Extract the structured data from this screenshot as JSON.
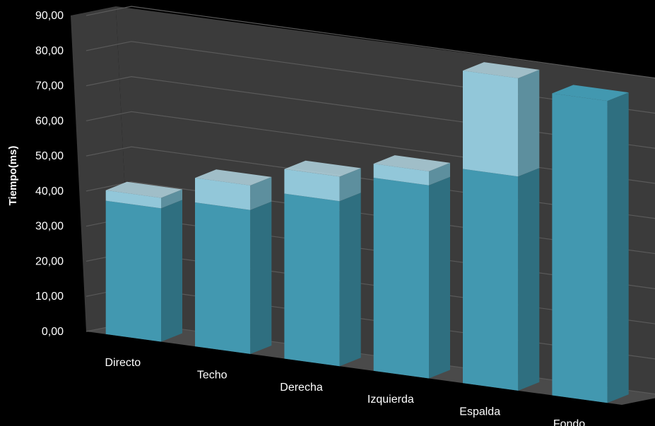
{
  "chart_data": {
    "type": "bar",
    "stacked": true,
    "three_d": true,
    "ylabel": "Tiempo(ms)",
    "xlabel": "",
    "ylim": [
      0,
      90
    ],
    "ytick_step": 10,
    "ytick_labels": [
      "0,00",
      "10,00",
      "20,00",
      "30,00",
      "40,00",
      "50,00",
      "60,00",
      "70,00",
      "80,00",
      "90,00"
    ],
    "grid": true,
    "categories": [
      "Directo",
      "Techo",
      "Derecha",
      "Izquierda",
      "Espalda",
      "Fondo"
    ],
    "series": [
      {
        "values": [
          38,
          41,
          47,
          55,
          61,
          86
        ]
      },
      {
        "values": [
          3,
          7,
          7,
          4,
          28,
          0
        ]
      }
    ],
    "colors": {
      "background": "#000000",
      "wall": "#3b3b3b",
      "floor": "#4a4a4a",
      "grid": "#5a5a5a",
      "series_dark_front": "#4298b0",
      "series_dark_side": "#2f6f80",
      "series_light_front": "#92c7d9",
      "series_light_side": "#5d8f9e",
      "series_light_top": "#b3d6e2"
    }
  }
}
